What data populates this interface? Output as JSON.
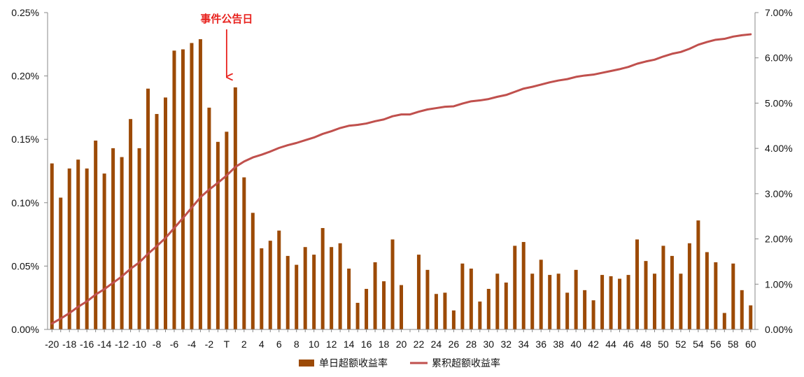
{
  "chart_data": {
    "type": "bar",
    "x": [
      "-20",
      "-19",
      "-18",
      "-17",
      "-16",
      "-15",
      "-14",
      "-13",
      "-12",
      "-11",
      "-10",
      "-9",
      "-8",
      "-7",
      "-6",
      "-5",
      "-4",
      "-3",
      "-2",
      "-1",
      "T",
      "1",
      "2",
      "3",
      "4",
      "5",
      "6",
      "7",
      "8",
      "9",
      "10",
      "11",
      "12",
      "13",
      "14",
      "15",
      "16",
      "17",
      "18",
      "19",
      "20",
      "21",
      "22",
      "23",
      "24",
      "25",
      "26",
      "27",
      "28",
      "29",
      "30",
      "31",
      "32",
      "33",
      "34",
      "35",
      "36",
      "37",
      "38",
      "39",
      "40",
      "41",
      "42",
      "43",
      "44",
      "45",
      "46",
      "47",
      "48",
      "49",
      "50",
      "51",
      "52",
      "53",
      "54",
      "55",
      "56",
      "57",
      "58",
      "59",
      "60"
    ],
    "x_tick_labels": [
      "-20",
      "-18",
      "-16",
      "-14",
      "-12",
      "-10",
      "-8",
      "-6",
      "-4",
      "-2",
      "T",
      "2",
      "4",
      "6",
      "8",
      "10",
      "12",
      "14",
      "16",
      "18",
      "20",
      "22",
      "24",
      "26",
      "28",
      "30",
      "32",
      "34",
      "36",
      "38",
      "40",
      "42",
      "44",
      "46",
      "48",
      "50",
      "52",
      "54",
      "56",
      "58",
      "60"
    ],
    "series": [
      {
        "name": "单日超额收益率",
        "type": "bar",
        "axis": "left",
        "color": "#9C4A06",
        "values": [
          0.131,
          0.104,
          0.127,
          0.134,
          0.127,
          0.149,
          0.123,
          0.143,
          0.136,
          0.166,
          0.143,
          0.19,
          0.17,
          0.183,
          0.22,
          0.221,
          0.226,
          0.229,
          0.175,
          0.148,
          0.156,
          0.191,
          0.12,
          0.092,
          0.064,
          0.07,
          0.078,
          0.058,
          0.051,
          0.065,
          0.059,
          0.08,
          0.065,
          0.068,
          0.048,
          0.021,
          0.032,
          0.053,
          0.038,
          0.071,
          0.035,
          0.0,
          0.059,
          0.047,
          0.028,
          0.029,
          0.015,
          0.052,
          0.048,
          0.022,
          0.032,
          0.044,
          0.037,
          0.066,
          0.069,
          0.044,
          0.055,
          0.043,
          0.044,
          0.029,
          0.047,
          0.031,
          0.023,
          0.043,
          0.042,
          0.04,
          0.043,
          0.071,
          0.054,
          0.044,
          0.066,
          0.058,
          0.044,
          0.068,
          0.086,
          0.061,
          0.053,
          0.013,
          0.052,
          0.031,
          0.019
        ]
      },
      {
        "name": "累积超额收益率",
        "type": "line",
        "axis": "right",
        "color": "#C0504D",
        "values": [
          0.13,
          0.24,
          0.36,
          0.5,
          0.62,
          0.77,
          0.89,
          1.03,
          1.17,
          1.34,
          1.48,
          1.67,
          1.84,
          2.02,
          2.24,
          2.46,
          2.69,
          2.92,
          3.09,
          3.24,
          3.4,
          3.59,
          3.71,
          3.8,
          3.86,
          3.93,
          4.01,
          4.07,
          4.12,
          4.18,
          4.24,
          4.32,
          4.38,
          4.45,
          4.5,
          4.52,
          4.55,
          4.6,
          4.64,
          4.71,
          4.75,
          4.75,
          4.81,
          4.86,
          4.89,
          4.92,
          4.93,
          4.99,
          5.04,
          5.06,
          5.09,
          5.14,
          5.18,
          5.25,
          5.32,
          5.36,
          5.41,
          5.46,
          5.5,
          5.53,
          5.58,
          5.61,
          5.63,
          5.67,
          5.71,
          5.75,
          5.8,
          5.87,
          5.92,
          5.96,
          6.03,
          6.09,
          6.13,
          6.2,
          6.29,
          6.35,
          6.4,
          6.42,
          6.47,
          6.5,
          6.52
        ]
      }
    ],
    "y_left": {
      "min": 0,
      "max": 0.25,
      "ticks": [
        0.0,
        0.05,
        0.1,
        0.15,
        0.2,
        0.25
      ],
      "tick_labels": [
        "0.00%",
        "0.05%",
        "0.10%",
        "0.15%",
        "0.20%",
        "0.25%"
      ]
    },
    "y_right": {
      "min": 0,
      "max": 7,
      "ticks": [
        0,
        1,
        2,
        3,
        4,
        5,
        6,
        7
      ],
      "tick_labels": [
        "0.00%",
        "1.00%",
        "2.00%",
        "3.00%",
        "4.00%",
        "5.00%",
        "6.00%",
        "7.00%"
      ]
    },
    "annotation": {
      "text": "事件公告日",
      "x": "T",
      "color": "#E8231F"
    },
    "legend": {
      "position": "bottom"
    },
    "grid": false
  }
}
